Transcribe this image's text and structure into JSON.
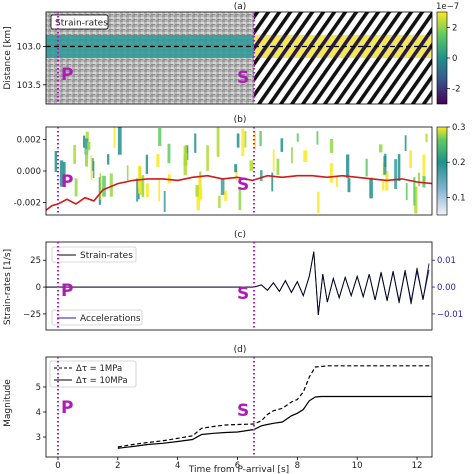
{
  "figure": {
    "xlabel": "Time from P-arrival [s]",
    "x_ticks": [
      "0",
      "2",
      "4",
      "6",
      "8",
      "10",
      "12"
    ],
    "p_label": "P",
    "s_label": "S",
    "p_time": 0.0,
    "s_time": 6.55,
    "xlim": [
      -0.4,
      12.5
    ],
    "colors": {
      "marker": "#b01bb8",
      "red": "#d11a1a",
      "blue": "#1f1fa6",
      "black": "#000000"
    }
  },
  "panels": [
    {
      "letter": "(a)",
      "ylabel": "Distance [km]",
      "y_ticks": [
        "103.0",
        "103.5"
      ],
      "y_tick_values": [
        103.0,
        103.5
      ],
      "ylim": [
        103.75,
        102.55
      ],
      "box_label": "Strain-rates",
      "colorbar": {
        "ticks": [
          "2",
          "0",
          "-2"
        ],
        "tick_values": [
          2,
          0,
          -2
        ],
        "range": [
          -3,
          3
        ],
        "exponent": "1e−7",
        "colormap": "viridis"
      }
    },
    {
      "letter": "(b)",
      "y_ticks": [
        "0.002",
        "0.000",
        "-0.002"
      ],
      "y_tick_values": [
        0.002,
        0.0,
        -0.002
      ],
      "ylim": [
        -0.0028,
        0.0028
      ],
      "colorbar": {
        "ticks": [
          "0.3",
          "0.2",
          "0.1"
        ],
        "tick_values": [
          0.3,
          0.2,
          0.1
        ],
        "range": [
          0.05,
          0.3
        ],
        "colormap": "viridis"
      }
    },
    {
      "letter": "(c)",
      "ylabel": "Strain-rates [1/s]",
      "y_ticks": [
        "25",
        "0",
        "−25"
      ],
      "y_tick_values": [
        25,
        0,
        -25
      ],
      "ylim": [
        -40,
        42
      ],
      "right_ticks": [
        "0.01",
        "0.00",
        "−0.01"
      ],
      "right_tick_values": [
        0.01,
        0.0,
        -0.01
      ],
      "right_ylim": [
        -0.016,
        0.0168
      ],
      "legend": [
        "Strain-rates",
        "Accelerations"
      ]
    },
    {
      "letter": "(d)",
      "ylabel": "Magnitude",
      "y_ticks": [
        "5",
        "4",
        "3"
      ],
      "y_tick_values": [
        5,
        4,
        3
      ],
      "ylim": [
        2.2,
        6.2
      ],
      "legend": [
        "Δτ = 1MPa",
        "Δτ = 10MPa"
      ]
    }
  ],
  "chart_data": [
    {
      "type": "heatmap",
      "title": "",
      "xlabel": "",
      "ylabel": "Distance [km]",
      "x_range": [
        -0.4,
        12.5
      ],
      "y_range": [
        102.55,
        103.75
      ],
      "highlight_band_km": [
        102.85,
        103.15
      ],
      "reference_line_km": 103.0,
      "colorbar_range": [
        -3e-07,
        3e-07
      ],
      "colorbar_label": "1e−7"
    },
    {
      "type": "line",
      "title": "",
      "xlabel": "",
      "ylabel": "",
      "ylim": [
        -0.0028,
        0.0028
      ],
      "x_range": [
        -0.4,
        12.5
      ],
      "series": [
        {
          "name": "",
          "color": "#d11a1a",
          "x": [
            -0.4,
            -0.2,
            0.0,
            0.3,
            0.6,
            0.9,
            1.2,
            1.5,
            2.0,
            2.5,
            3.0,
            3.5,
            4.0,
            4.5,
            5.0,
            5.5,
            6.0,
            6.5,
            7.0,
            7.5,
            8.0,
            8.5,
            9.0,
            9.5,
            10.0,
            10.5,
            11.0,
            11.5,
            12.0,
            12.5
          ],
          "y": [
            -0.0025,
            -0.0022,
            -0.0021,
            -0.0018,
            -0.0021,
            -0.0017,
            -0.0019,
            -0.0012,
            -0.0008,
            -0.0006,
            -0.0005,
            -0.0005,
            -0.0006,
            -0.0004,
            -0.0003,
            -0.0005,
            -0.0004,
            -0.0006,
            -0.0003,
            -0.0004,
            -0.0003,
            -0.0003,
            -0.0004,
            -0.0003,
            -0.0004,
            -0.0005,
            -0.0006,
            -0.0005,
            -0.0007,
            -0.0008
          ]
        }
      ]
    },
    {
      "type": "line",
      "title": "",
      "xlabel": "",
      "ylabel": "Strain-rates [1/s]",
      "ylim": [
        -40,
        42
      ],
      "x_range": [
        -0.4,
        12.5
      ],
      "series": [
        {
          "name": "Strain-rates",
          "color": "#000000",
          "x": [
            -0.4,
            0.0,
            1.0,
            2.0,
            3.0,
            4.0,
            5.0,
            6.0,
            6.55,
            6.8,
            7.0,
            7.2,
            7.4,
            7.6,
            7.8,
            8.0,
            8.2,
            8.4,
            8.55,
            8.7,
            8.85,
            9.0,
            9.2,
            9.4,
            9.6,
            9.8,
            10.0,
            10.2,
            10.4,
            10.6,
            10.8,
            11.0,
            11.2,
            11.4,
            11.6,
            11.8,
            12.0,
            12.2,
            12.4
          ],
          "y": [
            0,
            0,
            0,
            0,
            0,
            0,
            0,
            0,
            0,
            2,
            -3,
            4,
            -4,
            6,
            -5,
            5,
            -8,
            10,
            33,
            -26,
            12,
            -14,
            8,
            -10,
            9,
            -8,
            10,
            -9,
            12,
            -12,
            14,
            -13,
            15,
            -15,
            16,
            -16,
            18,
            -12,
            22
          ]
        },
        {
          "name": "Accelerations",
          "color": "#1f1fa6",
          "x": [
            -0.4,
            0.0,
            1.0,
            2.0,
            3.0,
            4.0,
            5.0,
            6.0,
            6.55,
            6.8,
            7.0,
            7.2,
            7.4,
            7.6,
            7.8,
            8.0,
            8.2,
            8.4,
            8.55,
            8.7,
            8.85,
            9.0,
            9.2,
            9.4,
            9.6,
            9.8,
            10.0,
            10.2,
            10.4,
            10.6,
            10.8,
            11.0,
            11.2,
            11.4,
            11.6,
            11.8,
            12.0,
            12.2,
            12.4
          ],
          "y": [
            0,
            0,
            0,
            0,
            0,
            0,
            0,
            0,
            0,
            0.0008,
            -0.0012,
            0.0016,
            -0.0016,
            0.0024,
            -0.002,
            0.002,
            -0.0032,
            0.004,
            0.0132,
            -0.0104,
            0.0048,
            -0.0056,
            0.0032,
            -0.004,
            0.0036,
            -0.0032,
            0.004,
            -0.0036,
            0.0048,
            -0.0048,
            0.0052,
            -0.0048,
            0.0056,
            -0.0052,
            0.0056,
            -0.0052,
            0.006,
            -0.0044,
            0.0064
          ]
        }
      ]
    },
    {
      "type": "line",
      "title": "",
      "xlabel": "Time from P-arrival [s]",
      "ylabel": "Magnitude",
      "ylim": [
        2.2,
        6.2
      ],
      "x_range": [
        -0.4,
        12.5
      ],
      "series": [
        {
          "name": "Δτ = 1MPa",
          "dash": "dashed",
          "x": [
            2.0,
            2.5,
            3.0,
            3.5,
            4.0,
            4.5,
            4.8,
            5.2,
            5.6,
            6.0,
            6.55,
            6.8,
            7.0,
            7.2,
            7.5,
            7.8,
            8.0,
            8.2,
            8.4,
            8.6,
            8.8,
            9.0,
            9.5,
            10.0,
            11.0,
            12.0,
            12.5
          ],
          "y": [
            2.6,
            2.7,
            2.78,
            2.85,
            2.95,
            3.05,
            3.35,
            3.42,
            3.48,
            3.5,
            3.52,
            3.65,
            3.9,
            4.05,
            4.15,
            4.4,
            4.5,
            4.8,
            5.4,
            5.8,
            5.82,
            5.85,
            5.85,
            5.85,
            5.85,
            5.85,
            5.85
          ]
        },
        {
          "name": "Δτ = 10MPa",
          "dash": "solid",
          "x": [
            2.0,
            2.5,
            3.0,
            3.5,
            4.0,
            4.5,
            4.8,
            5.2,
            5.6,
            6.0,
            6.55,
            6.8,
            7.0,
            7.2,
            7.5,
            7.8,
            8.0,
            8.2,
            8.4,
            8.6,
            8.8,
            9.0,
            9.5,
            10.0,
            11.0,
            12.0,
            12.5
          ],
          "y": [
            2.55,
            2.62,
            2.7,
            2.75,
            2.82,
            2.9,
            3.1,
            3.15,
            3.18,
            3.2,
            3.3,
            3.45,
            3.5,
            3.55,
            3.6,
            3.85,
            3.95,
            4.1,
            4.45,
            4.6,
            4.62,
            4.62,
            4.62,
            4.62,
            4.62,
            4.62,
            4.62
          ]
        }
      ]
    }
  ]
}
